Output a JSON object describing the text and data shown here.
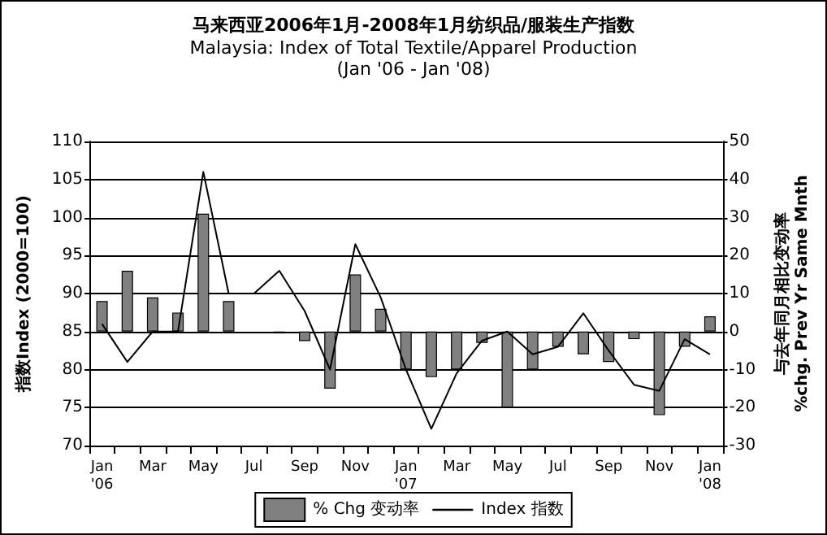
{
  "chart_data": {
    "type": "bar",
    "title": "马来西亚2006年1月-2008年1月纺织品/服装生产指数",
    "subtitle": "Malaysia: Index of Total Textile/Apparel Production\n(Jan '06 - Jan '08)",
    "ylabel": "指数Index (2000=100)",
    "y2label": "与去年同月相比变动率\n%chg. Prev Yr Same Mnth",
    "categories": [
      "Jan\n'06",
      null,
      "Mar",
      null,
      "May",
      null,
      "Jul",
      null,
      "Sep",
      null,
      "Nov",
      null,
      "Jan\n'07",
      null,
      "Mar",
      null,
      "May",
      null,
      "Jul",
      null,
      "Sep",
      null,
      "Nov",
      null,
      "Jan\n'08"
    ],
    "series": [
      {
        "name": "% Chg 变动率",
        "axis": "y2",
        "color": "#808080",
        "values": [
          8,
          16,
          9,
          5,
          31,
          8,
          null,
          -0.5,
          -2.5,
          -15,
          15,
          6,
          -10,
          -12,
          -10,
          -3,
          -20,
          -10,
          -4,
          -6,
          -8,
          -2,
          -22,
          -4,
          4
        ]
      },
      {
        "name": "Index 指数",
        "type": "line",
        "color": "#000000",
        "values": [
          86,
          81,
          85,
          85,
          106,
          90,
          90,
          93,
          87.7,
          80,
          96.5,
          89.5,
          80,
          72.2,
          79.5,
          83.8,
          85,
          82,
          83,
          87.4,
          82.5,
          78,
          77.2,
          84,
          82
        ]
      }
    ],
    "ylim": [
      70,
      110
    ],
    "yticks": [
      70,
      75,
      80,
      85,
      90,
      95,
      100,
      105,
      110
    ],
    "y2lim": [
      -30,
      50
    ],
    "y2ticks": [
      -30,
      -20,
      -10,
      0,
      10,
      20,
      30,
      40,
      50
    ],
    "grid": "y",
    "legend": "bottom",
    "marker": "none",
    "line_style": "solid"
  }
}
